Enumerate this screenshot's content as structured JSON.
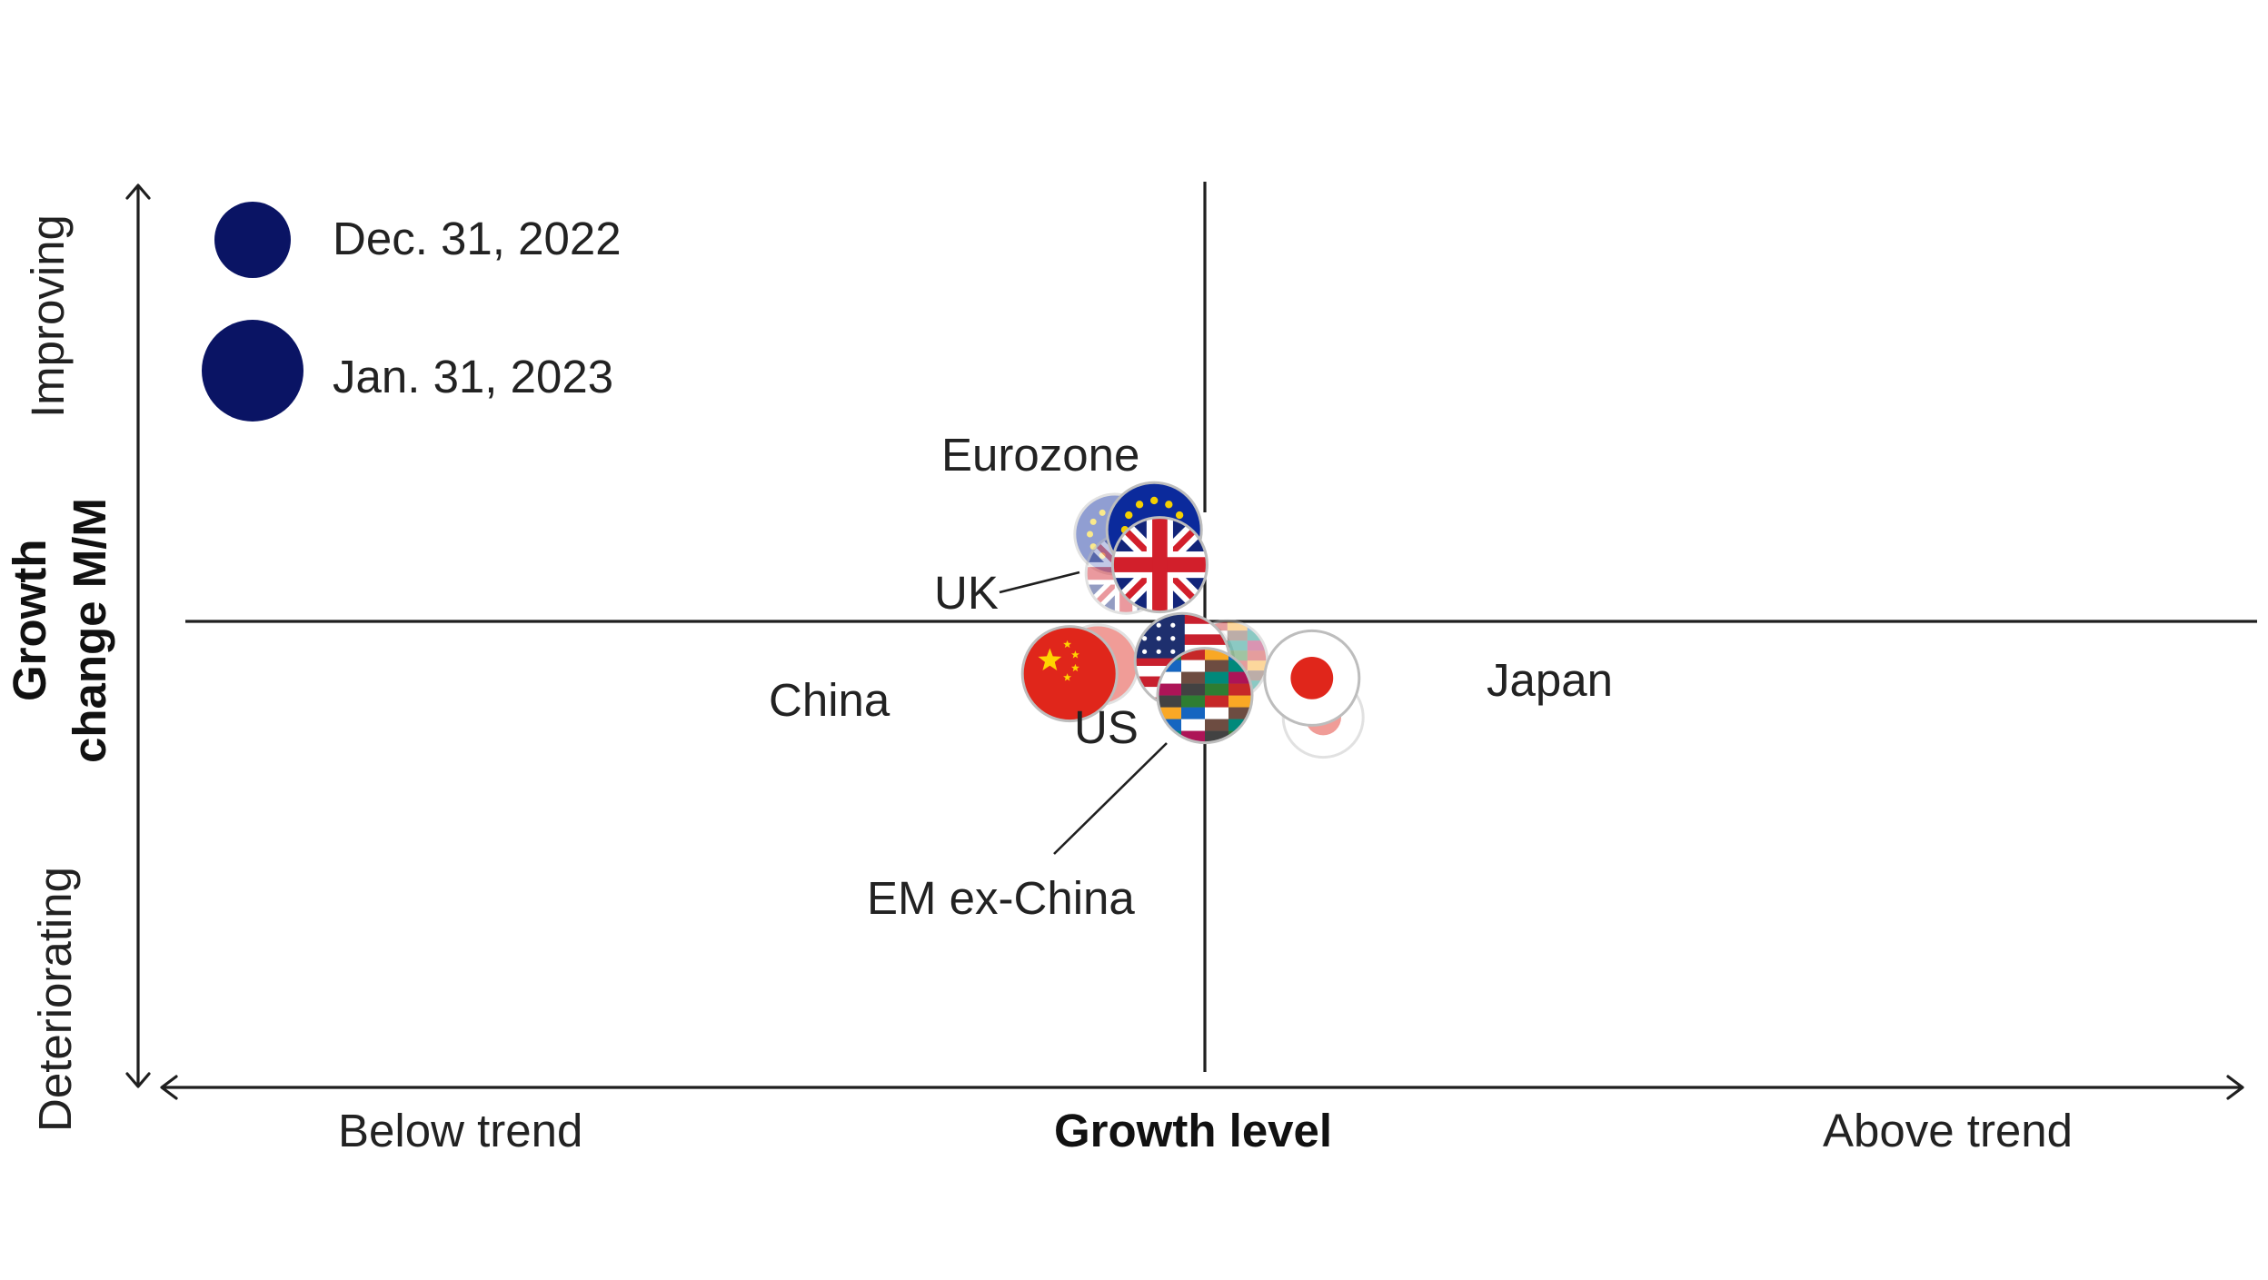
{
  "chart_data": {
    "type": "scatter",
    "title": "",
    "x_axis": {
      "label": "Growth level",
      "left_label": "Below trend",
      "right_label": "Above trend",
      "range": [
        -1,
        1
      ],
      "center": 0
    },
    "y_axis": {
      "label_line1": "Growth",
      "label_line2": "change M/M",
      "top_label": "Improving",
      "bottom_label": "Deteriorating",
      "range": [
        -1,
        1
      ],
      "center": 0
    },
    "grid": false,
    "legend": {
      "placement": "top-left",
      "entries": [
        {
          "label": "Dec. 31, 2022",
          "size": "small"
        },
        {
          "label": "Jan. 31, 2023",
          "size": "large"
        }
      ]
    },
    "series": [
      {
        "name": "Eurozone",
        "flag": "eu-flag",
        "dec_2022": {
          "x": -0.16,
          "y": 0.2
        },
        "jan_2023": {
          "x": -0.09,
          "y": 0.21
        }
      },
      {
        "name": "UK",
        "flag": "uk-flag",
        "dec_2022": {
          "x": -0.14,
          "y": 0.11
        },
        "jan_2023": {
          "x": -0.08,
          "y": 0.13
        }
      },
      {
        "name": "China",
        "flag": "china-flag",
        "dec_2022": {
          "x": -0.19,
          "y": -0.1
        },
        "jan_2023": {
          "x": -0.24,
          "y": -0.12
        }
      },
      {
        "name": "US",
        "flag": "us-flag",
        "dec_2022": {
          "x": -0.02,
          "y": -0.09
        },
        "jan_2023": {
          "x": -0.04,
          "y": -0.09
        }
      },
      {
        "name": "EM ex-China",
        "flag": "em-flags",
        "dec_2022": {
          "x": 0.04,
          "y": -0.09
        },
        "jan_2023": {
          "x": 0.0,
          "y": -0.17
        }
      },
      {
        "name": "Japan",
        "flag": "japan-flag",
        "dec_2022": {
          "x": 0.21,
          "y": -0.22
        },
        "jan_2023": {
          "x": 0.19,
          "y": -0.13
        }
      }
    ],
    "colors": {
      "legend_dot": "#0a1464",
      "axis": "#1f1f1f",
      "text": "#222222"
    }
  }
}
